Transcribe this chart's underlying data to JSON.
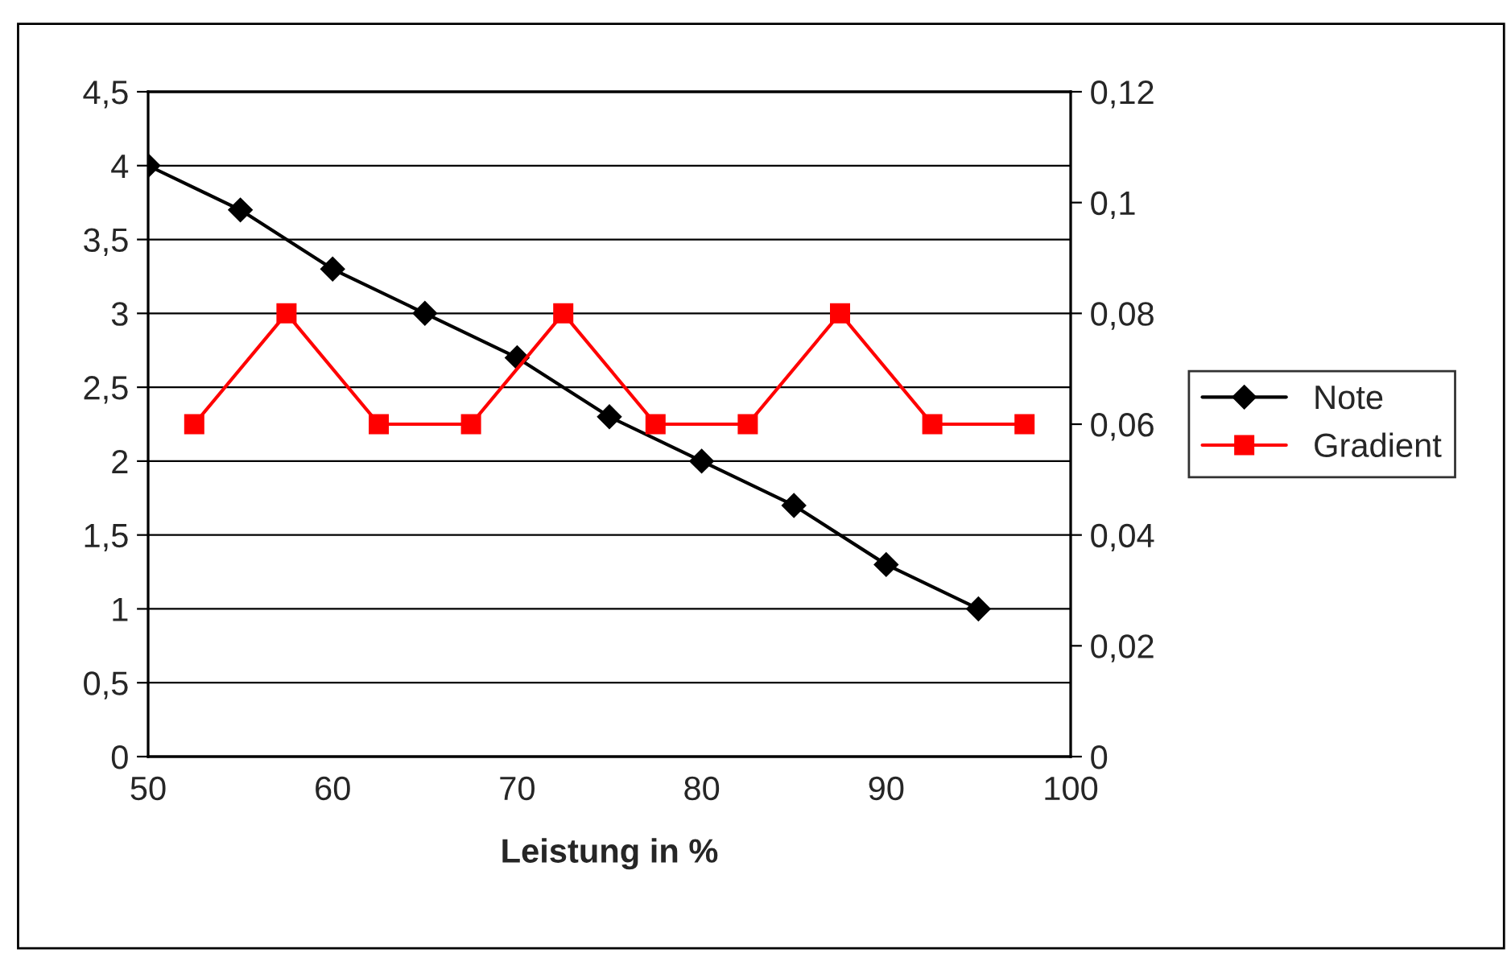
{
  "chart_data": {
    "type": "line",
    "xlabel": "Leistung in %",
    "xlim": [
      50,
      100
    ],
    "xticks": [
      50,
      60,
      70,
      80,
      90,
      100
    ],
    "ylim": [
      0,
      4.5
    ],
    "yticks": [
      0,
      {
        "value": 0.5,
        "label": "0,5"
      },
      1,
      {
        "value": 1.5,
        "label": "1,5"
      },
      2,
      {
        "value": 2.5,
        "label": "2,5"
      },
      3,
      {
        "value": 3.5,
        "label": "3,5"
      },
      4,
      {
        "value": 4.5,
        "label": "4,5"
      }
    ],
    "y2lim": [
      0,
      0.12
    ],
    "y2ticks": [
      0,
      {
        "value": 0.02,
        "label": "0,02"
      },
      {
        "value": 0.04,
        "label": "0,04"
      },
      {
        "value": 0.06,
        "label": "0,06"
      },
      {
        "value": 0.08,
        "label": "0,08"
      },
      {
        "value": 0.1,
        "label": "0,1"
      },
      {
        "value": 0.12,
        "label": "0,12"
      }
    ],
    "grid": "y",
    "legend": "right",
    "series": [
      {
        "name": "Note",
        "color": "#000000",
        "marker": "diamond",
        "x": [
          50,
          55,
          60,
          65,
          70,
          75,
          80,
          85,
          90,
          95
        ],
        "values": [
          4,
          3.7,
          3.3,
          3.0,
          2.7,
          2.3,
          2.0,
          1.7,
          1.3,
          1.0
        ]
      },
      {
        "name": "Gradient",
        "color": "#ff0000",
        "marker": "square",
        "axis": "y2",
        "x": [
          52.5,
          57.5,
          62.5,
          67.5,
          72.5,
          77.5,
          82.5,
          87.5,
          92.5,
          97.5
        ],
        "values": [
          0.06,
          0.08,
          0.06,
          0.06,
          0.08,
          0.06,
          0.06,
          0.08,
          0.06,
          0.06
        ]
      }
    ]
  }
}
